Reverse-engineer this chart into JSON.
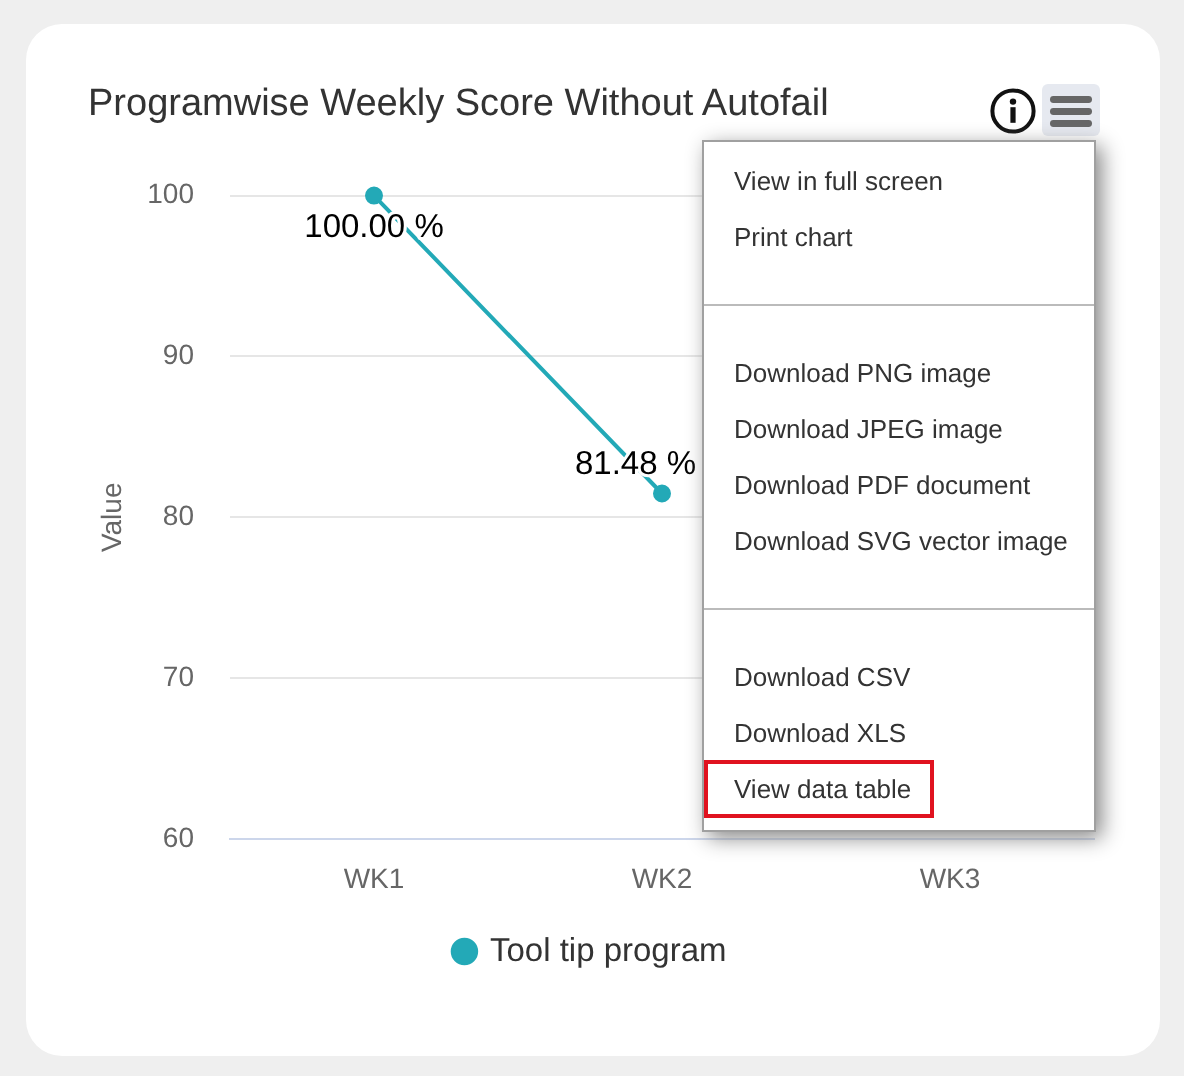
{
  "chart_data": {
    "type": "line",
    "title": "Programwise Weekly Score Without Autofail",
    "ylabel": "Value",
    "categories": [
      "WK1",
      "WK2",
      "WK3"
    ],
    "series": [
      {
        "name": "Tool tip program",
        "color": "#23a9b7",
        "values": [
          100,
          81.48,
          null
        ],
        "value_labels": [
          "100.00 %",
          "81.48 %",
          null
        ]
      }
    ],
    "ylim": [
      60,
      100
    ],
    "yticks": [
      60,
      70,
      80,
      90,
      100
    ],
    "grid": "y",
    "legend": "bottom",
    "marker": "circle",
    "line_style": "solid",
    "annotations": [
      "View in full screen",
      "Print chart",
      "Download PNG image",
      "Download JPEG image",
      "Download PDF document",
      "Download SVG vector image",
      "Download CSV",
      "Download XLS",
      "View data table"
    ]
  }
}
